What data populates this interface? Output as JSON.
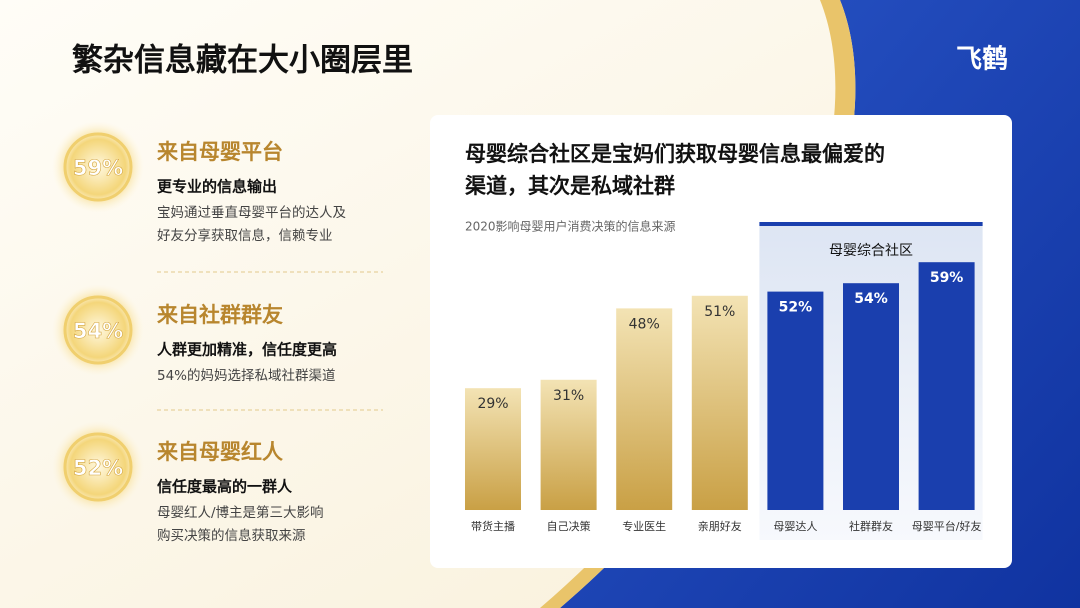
{
  "slide_title": "繁杂信息藏在大小圈层里",
  "logo": "飞鹤",
  "items": [
    {
      "percent": "59%",
      "heading": "来自母婴平台",
      "subheading": "更专业的信息输出",
      "description": [
        "宝妈通过垂直母婴平台的达人及",
        "好友分享获取信息，信赖专业"
      ]
    },
    {
      "percent": "54%",
      "heading": "来自社群群友",
      "subheading": "人群更加精准，信任度更高",
      "description": [
        "54%的妈妈选择私域社群渠道"
      ]
    },
    {
      "percent": "52%",
      "heading": "来自母婴红人",
      "subheading": "信任度最高的一群人",
      "description": [
        "母婴红人/博主是第三大影响",
        "购买决策的信息获取来源"
      ]
    }
  ],
  "chart_data": {
    "type": "bar",
    "title": [
      "母婴综合社区是宝妈们获取母婴信息最偏爱的",
      "渠道，其次是私域社群"
    ],
    "subtitle": "2020影响母婴用户消费决策的信息来源",
    "categories": [
      "带货主播",
      "自己决策",
      "专业医生",
      "亲朋好友",
      "母婴达人",
      "社群群友",
      "母婴平台/好友"
    ],
    "values": [
      29,
      31,
      48,
      51,
      52,
      54,
      59
    ],
    "value_labels": [
      "29%",
      "31%",
      "48%",
      "51%",
      "52%",
      "54%",
      "59%"
    ],
    "colors": [
      "#dcc07a",
      "#dcc07a",
      "#dcc07a",
      "#dcc07a",
      "#1a3fae",
      "#1a3fae",
      "#1a3fae"
    ],
    "highlight": {
      "label": "母婴综合社区",
      "color": "#1a3fae"
    }
  }
}
